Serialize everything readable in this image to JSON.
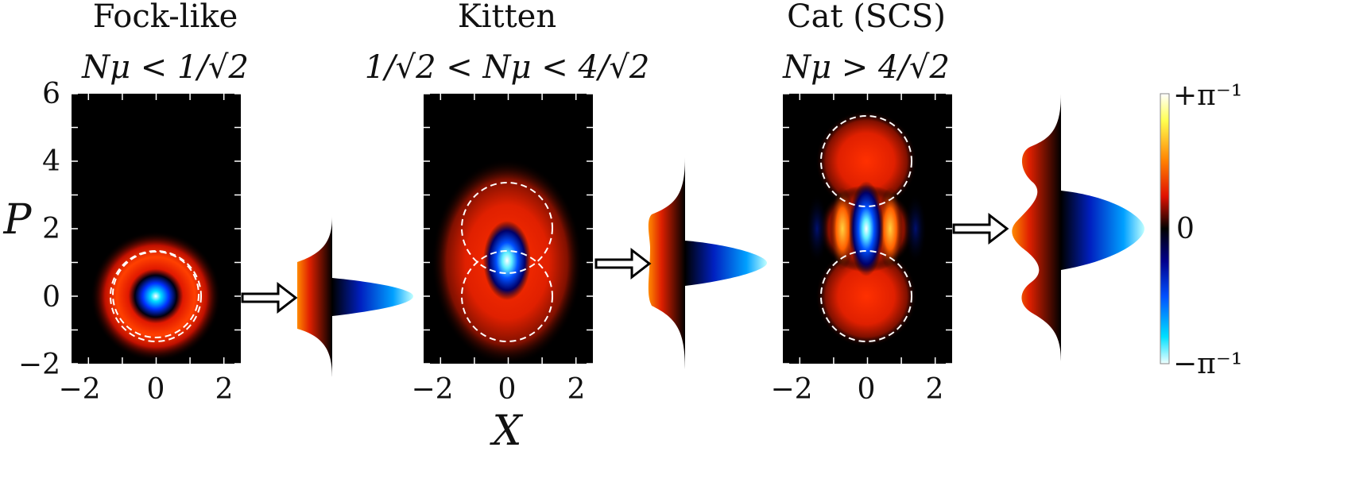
{
  "chart_data": [
    {
      "type": "heatmap",
      "title": "Fock-like",
      "subtitle": "Nμ < 1/√2",
      "xlim": [
        -2.5,
        2.5
      ],
      "ylim": [
        -2,
        6
      ],
      "xticks": [
        "−2",
        "0",
        "2"
      ],
      "yticks": [
        "−2",
        "0",
        "2",
        "4",
        "6"
      ],
      "ylabel": "P",
      "xlabel": "",
      "centers": [
        [
          0,
          0
        ]
      ],
      "dashed_circle_radius": 1.35,
      "marginal_profile": "negative center lobe with positive ring"
    },
    {
      "type": "heatmap",
      "title": "Kitten",
      "subtitle": "1/√2 < Nμ < 4/√2",
      "xlim": [
        -2.5,
        2.5
      ],
      "ylim": [
        -2,
        6
      ],
      "xticks": [
        "−2",
        "0",
        "2"
      ],
      "xlabel": "X",
      "ylabel": "",
      "centers": [
        [
          0,
          0
        ],
        [
          0,
          2
        ]
      ],
      "dashed_circle_radius": 1.3,
      "marginal_profile": "negative peak near P=1"
    },
    {
      "type": "heatmap",
      "title": "Cat (SCS)",
      "subtitle": "Nμ > 4/√2",
      "xlim": [
        -2.5,
        2.5
      ],
      "ylim": [
        -2,
        6
      ],
      "xticks": [
        "−2",
        "0",
        "2"
      ],
      "xlabel": "",
      "ylabel": "",
      "centers": [
        [
          0,
          0
        ],
        [
          0,
          4
        ]
      ],
      "dashed_circle_radius": 1.3,
      "marginal_profile": "negative peak near P=2 with positive side lobes"
    }
  ],
  "colorbar": {
    "max_label": "+π⁻¹",
    "mid_label": "0",
    "min_label": "−π⁻¹",
    "colors": [
      "#ffffff",
      "#ffff40",
      "#ff8000",
      "#ff1000",
      "#800000",
      "#000000",
      "#00008a",
      "#0050ff",
      "#00e0ff",
      "#e8ffff"
    ]
  },
  "icons": {
    "arrow": "hollow-double-arrow-icon"
  }
}
